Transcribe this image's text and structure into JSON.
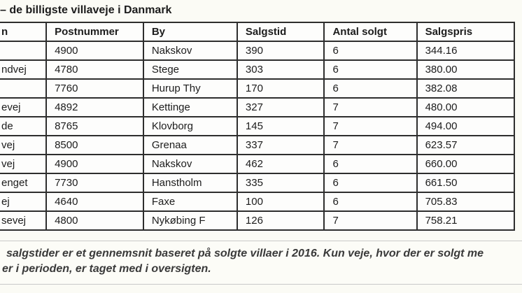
{
  "title": "– de billigste villaveje i Danmark",
  "table": {
    "headers": [
      "n",
      "Postnummer",
      "By",
      "Salgstid",
      "Antal solgt",
      "Salgspris"
    ],
    "rows": [
      {
        "vejnavn": "",
        "postnummer": "4900",
        "by": "Nakskov",
        "salgstid": "390",
        "antal_solgt": "6",
        "salgspris": "344.16"
      },
      {
        "vejnavn": "ndvej",
        "postnummer": "4780",
        "by": "Stege",
        "salgstid": "303",
        "antal_solgt": "6",
        "salgspris": "380.00"
      },
      {
        "vejnavn": "",
        "postnummer": "7760",
        "by": "Hurup Thy",
        "salgstid": "170",
        "antal_solgt": "6",
        "salgspris": "382.08"
      },
      {
        "vejnavn": "evej",
        "postnummer": "4892",
        "by": "Kettinge",
        "salgstid": "327",
        "antal_solgt": "7",
        "salgspris": "480.00"
      },
      {
        "vejnavn": "de",
        "postnummer": "8765",
        "by": "Klovborg",
        "salgstid": "145",
        "antal_solgt": "7",
        "salgspris": "494.00"
      },
      {
        "vejnavn": "vej",
        "postnummer": "8500",
        "by": "Grenaa",
        "salgstid": "337",
        "antal_solgt": "7",
        "salgspris": "623.57"
      },
      {
        "vejnavn": "vej",
        "postnummer": "4900",
        "by": "Nakskov",
        "salgstid": "462",
        "antal_solgt": "6",
        "salgspris": "660.00"
      },
      {
        "vejnavn": "enget",
        "postnummer": "7730",
        "by": "Hanstholm",
        "salgstid": "335",
        "antal_solgt": "6",
        "salgspris": "661.50"
      },
      {
        "vejnavn": "ej",
        "postnummer": "4640",
        "by": "Faxe",
        "salgstid": "100",
        "antal_solgt": "6",
        "salgspris": "705.83"
      },
      {
        "vejnavn": "sevej",
        "postnummer": "4800",
        "by": "Nykøbing F",
        "salgstid": "126",
        "antal_solgt": "7",
        "salgspris": "758.21"
      }
    ]
  },
  "note": {
    "line1": "salgstider er et gennemsnit baseret på solgte villaer i 2016. Kun veje, hvor der er solgt me",
    "line2": "er i perioden, er taget med i oversigten."
  },
  "colors": {
    "page_background": "#fbfbf5",
    "table_border": "#2e2e2e",
    "note_border": "#c9c9c9",
    "note_text": "#3a3a3a"
  }
}
